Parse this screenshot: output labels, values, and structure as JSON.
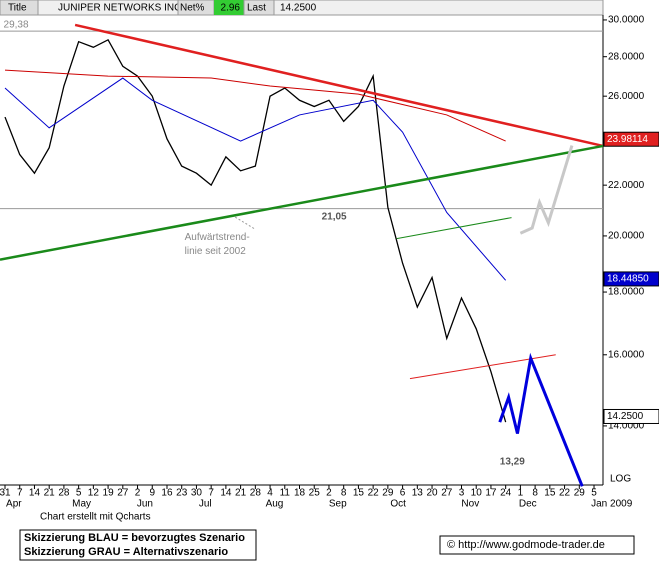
{
  "header": {
    "title_label": "Title",
    "title": "JUNIPER NETWORKS INC",
    "net_label": "Net%",
    "net": 2.96,
    "last_label": "Last",
    "last": "14.2500"
  },
  "chart_data": {
    "type": "line",
    "log_scale": true,
    "xlim": [
      -0.34,
      40.61
    ],
    "ylim": [
      12.53,
      30.28
    ],
    "xticks": [
      {
        "value": 0,
        "label": "31"
      },
      {
        "value": 1,
        "label": "7"
      },
      {
        "value": 2,
        "label": "14"
      },
      {
        "value": 3,
        "label": "21"
      },
      {
        "value": 4,
        "label": "28"
      },
      {
        "value": 5,
        "label": "5"
      },
      {
        "value": 6,
        "label": "12"
      },
      {
        "value": 7,
        "label": "19"
      },
      {
        "value": 8,
        "label": "27"
      },
      {
        "value": 9,
        "label": "2"
      },
      {
        "value": 10,
        "label": "9"
      },
      {
        "value": 11,
        "label": "16"
      },
      {
        "value": 12,
        "label": "23"
      },
      {
        "value": 13,
        "label": "30"
      },
      {
        "value": 14,
        "label": "7"
      },
      {
        "value": 15,
        "label": "14"
      },
      {
        "value": 16,
        "label": "21"
      },
      {
        "value": 17,
        "label": "28"
      },
      {
        "value": 18,
        "label": "4"
      },
      {
        "value": 19,
        "label": "11"
      },
      {
        "value": 20,
        "label": "18"
      },
      {
        "value": 21,
        "label": "25"
      },
      {
        "value": 22,
        "label": "2"
      },
      {
        "value": 23,
        "label": "8"
      },
      {
        "value": 24,
        "label": "15"
      },
      {
        "value": 25,
        "label": "22"
      },
      {
        "value": 26,
        "label": "29"
      },
      {
        "value": 27,
        "label": "6"
      },
      {
        "value": 28,
        "label": "13"
      },
      {
        "value": 29,
        "label": "20"
      },
      {
        "value": 30,
        "label": "27"
      },
      {
        "value": 31,
        "label": "3"
      },
      {
        "value": 32,
        "label": "10"
      },
      {
        "value": 33,
        "label": "17"
      },
      {
        "value": 34,
        "label": "24"
      },
      {
        "value": 35,
        "label": "1"
      },
      {
        "value": 36,
        "label": "8"
      },
      {
        "value": 37,
        "label": "15"
      },
      {
        "value": 38,
        "label": "22"
      },
      {
        "value": 39,
        "label": "29"
      },
      {
        "value": 40,
        "label": "5"
      }
    ],
    "month_ticks": [
      {
        "value": 0.6,
        "label": "Apr"
      },
      {
        "value": 5.2,
        "label": "May"
      },
      {
        "value": 9.5,
        "label": "Jun"
      },
      {
        "value": 13.6,
        "label": "Jul"
      },
      {
        "value": 18.3,
        "label": "Aug"
      },
      {
        "value": 22.6,
        "label": "Sep"
      },
      {
        "value": 26.7,
        "label": "Oct"
      },
      {
        "value": 31.6,
        "label": "Nov"
      },
      {
        "value": 35.5,
        "label": "Dec"
      },
      {
        "value": 41.2,
        "label": "Jan 2009"
      }
    ],
    "yticks": [
      {
        "value": 30,
        "label": "30.0000"
      },
      {
        "value": 28,
        "label": "28.0000"
      },
      {
        "value": 26,
        "label": "26.0000"
      },
      {
        "value": 24,
        "label": "24.0000"
      },
      {
        "value": 22,
        "label": "22.0000"
      },
      {
        "value": 20,
        "label": "20.0000"
      },
      {
        "value": 18,
        "label": "18.0000"
      },
      {
        "value": 16,
        "label": "16.0000"
      },
      {
        "value": 14,
        "label": "14.0000"
      }
    ],
    "scale_label": "LOG",
    "hlines": [
      29.38,
      21.05
    ],
    "series": [
      {
        "color": "#000000",
        "width": 1.3,
        "x": [
          0,
          1,
          2,
          3,
          4,
          5,
          6,
          7,
          8,
          9,
          10,
          11,
          12,
          13,
          14,
          15,
          16,
          17,
          18,
          19,
          20,
          21,
          22,
          23,
          24,
          25,
          26,
          27,
          28,
          29,
          30,
          31,
          32,
          33,
          34
        ],
        "values": [
          25.0,
          23.3,
          22.5,
          23.6,
          26.5,
          28.8,
          28.5,
          28.9,
          27.5,
          27.0,
          26.0,
          24.0,
          22.8,
          22.5,
          22.0,
          23.2,
          22.6,
          22.8,
          26.0,
          26.4,
          25.8,
          25.5,
          25.8,
          24.8,
          25.5,
          27.0,
          21.1,
          19.0,
          17.5,
          18.5,
          16.5,
          17.8,
          16.8,
          15.5,
          14.1
        ]
      },
      {
        "color": "#cc0000",
        "width": 1,
        "x": [
          0,
          7,
          14,
          18,
          24,
          30,
          34
        ],
        "values": [
          27.3,
          27.0,
          26.9,
          26.5,
          26.1,
          25.1,
          23.9
        ]
      },
      {
        "color": "#0000cc",
        "width": 1,
        "x": [
          0,
          3,
          8,
          10,
          16,
          20,
          25,
          27,
          30,
          34
        ],
        "values": [
          26.4,
          24.5,
          26.9,
          25.8,
          23.9,
          25.1,
          25.8,
          24.3,
          20.9,
          18.4
        ]
      },
      {
        "color": "#e02020",
        "width": 2.5,
        "x": [
          4.76,
          40.61
        ],
        "values": [
          29.72,
          23.68
        ]
      },
      {
        "color": "#1a8a1a",
        "width": 2.5,
        "x": [
          -0.34,
          40.61
        ],
        "values": [
          19.13,
          23.68
        ]
      },
      {
        "color": "#1a8a1a",
        "width": 1,
        "x": [
          26.6,
          34.4
        ],
        "values": [
          19.9,
          20.7
        ]
      },
      {
        "color": "#e02020",
        "width": 1,
        "x": [
          27.5,
          37.4
        ],
        "values": [
          15.3,
          16.0
        ]
      },
      {
        "color": "#0000dd",
        "width": 3,
        "x": [
          33.6,
          34.2,
          34.8,
          35.7,
          39.2
        ],
        "values": [
          14.1,
          14.77,
          13.8,
          15.9,
          12.5
        ]
      },
      {
        "color": "#c8c8c8",
        "width": 3,
        "x": [
          35.0,
          35.8,
          36.3,
          36.9,
          38.5
        ],
        "values": [
          20.1,
          20.3,
          21.3,
          20.5,
          23.7
        ]
      }
    ],
    "price_labels": [
      {
        "value": 23.98114,
        "label": "23.98114",
        "color": "#e02020"
      },
      {
        "value": 18.4485,
        "label": "18.44850",
        "color": "#0000cc"
      },
      {
        "value": 14.25,
        "label": "14.2500",
        "color": "#ffffff"
      }
    ],
    "annotations": [
      {
        "text": "29,38",
        "x": -0.1,
        "y": 29.38
      },
      {
        "text": "21,05",
        "x": 21.5,
        "y": 21.05
      },
      {
        "text": "13,29",
        "x": 33.6,
        "y": 13.29
      }
    ],
    "note": "Aufwärtstrend-linie seit 2002",
    "note_lines": [
      "Aufwärtstrend-",
      "linie seit 2002"
    ]
  },
  "footer": {
    "credit": "Chart erstellt mit Qcharts",
    "legend": [
      "Skizzierung BLAU = bevorzugtes Szenario",
      "Skizzierung GRAU = Alternativszenario"
    ],
    "copyright": "© http://www.godmode-trader.de"
  }
}
